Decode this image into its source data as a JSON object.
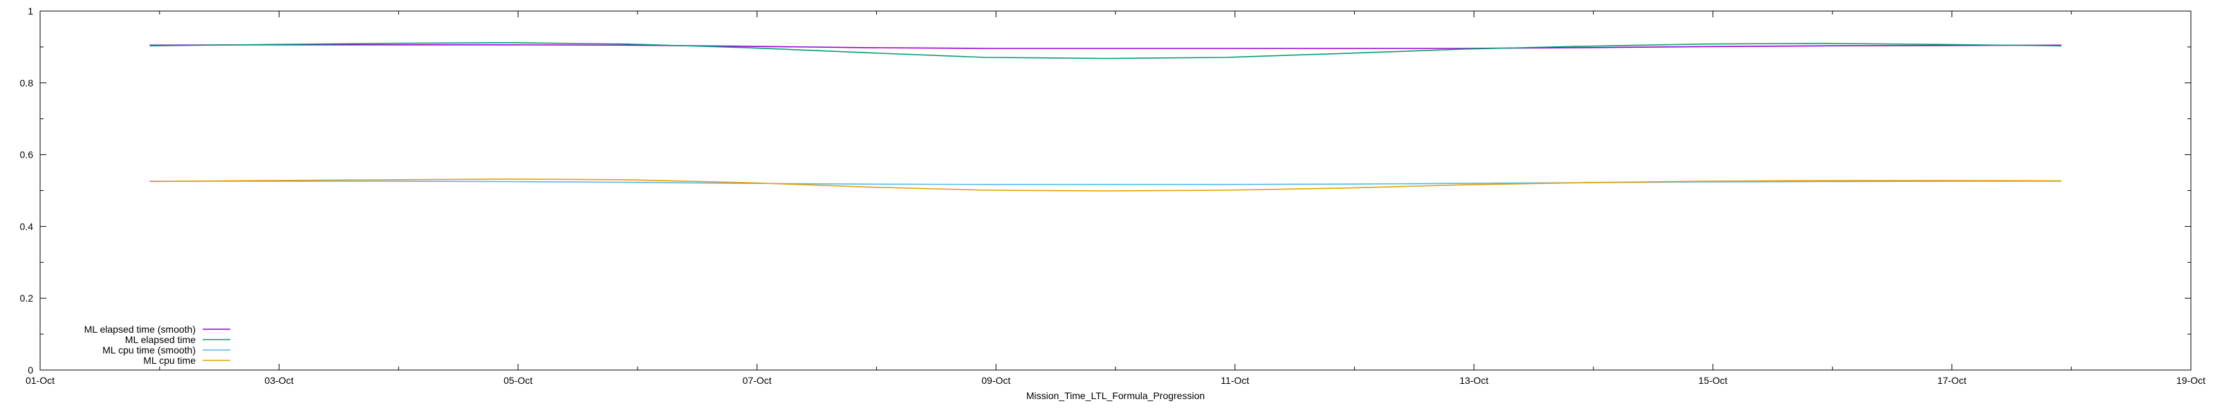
{
  "chart_data": {
    "type": "line",
    "title": "",
    "xlabel": "Mission_Time_LTL_Formula_Progression",
    "ylabel": "",
    "xlim": [
      "2024-10-01",
      "2024-10-19"
    ],
    "ylim": [
      0,
      1.0
    ],
    "x_ticks": [
      "01-Oct",
      "03-Oct",
      "05-Oct",
      "07-Oct",
      "09-Oct",
      "11-Oct",
      "13-Oct",
      "15-Oct",
      "17-Oct",
      "19-Oct"
    ],
    "y_ticks": [
      "0",
      "0.2",
      "0.4",
      "0.6",
      "0.8",
      "1"
    ],
    "grid": false,
    "legend_position": "bottom-left",
    "x": [
      "2024-10-01T22:00",
      "2024-10-02T22:00",
      "2024-10-03T22:00",
      "2024-10-04T22:00",
      "2024-10-05T22:00",
      "2024-10-06T22:00",
      "2024-10-07T22:00",
      "2024-10-08T22:00",
      "2024-10-09T22:00",
      "2024-10-10T22:00",
      "2024-10-11T22:00",
      "2024-10-12T22:00",
      "2024-10-13T22:00",
      "2024-10-14T22:00",
      "2024-10-15T22:00",
      "2024-10-16T22:00",
      "2024-10-17T22:00"
    ],
    "series": [
      {
        "name": "ML elapsed time (smooth)",
        "color": "#9400d3",
        "values": [
          0.905,
          0.906,
          0.906,
          0.906,
          0.905,
          0.902,
          0.898,
          0.896,
          0.896,
          0.896,
          0.896,
          0.896,
          0.898,
          0.901,
          0.903,
          0.904,
          0.905
        ]
      },
      {
        "name": "ML elapsed time",
        "color": "#009e73",
        "values": [
          0.903,
          0.907,
          0.91,
          0.912,
          0.908,
          0.898,
          0.884,
          0.871,
          0.868,
          0.871,
          0.882,
          0.894,
          0.902,
          0.908,
          0.91,
          0.907,
          0.903
        ]
      },
      {
        "name": "ML cpu time (smooth)",
        "color": "#56b4e9",
        "values": [
          0.526,
          0.526,
          0.526,
          0.525,
          0.523,
          0.52,
          0.518,
          0.517,
          0.517,
          0.517,
          0.518,
          0.52,
          0.522,
          0.524,
          0.525,
          0.526,
          0.526
        ]
      },
      {
        "name": "ML cpu time",
        "color": "#e69f00",
        "values": [
          0.525,
          0.528,
          0.53,
          0.532,
          0.53,
          0.522,
          0.51,
          0.501,
          0.499,
          0.501,
          0.507,
          0.516,
          0.522,
          0.526,
          0.528,
          0.528,
          0.527
        ]
      }
    ]
  }
}
